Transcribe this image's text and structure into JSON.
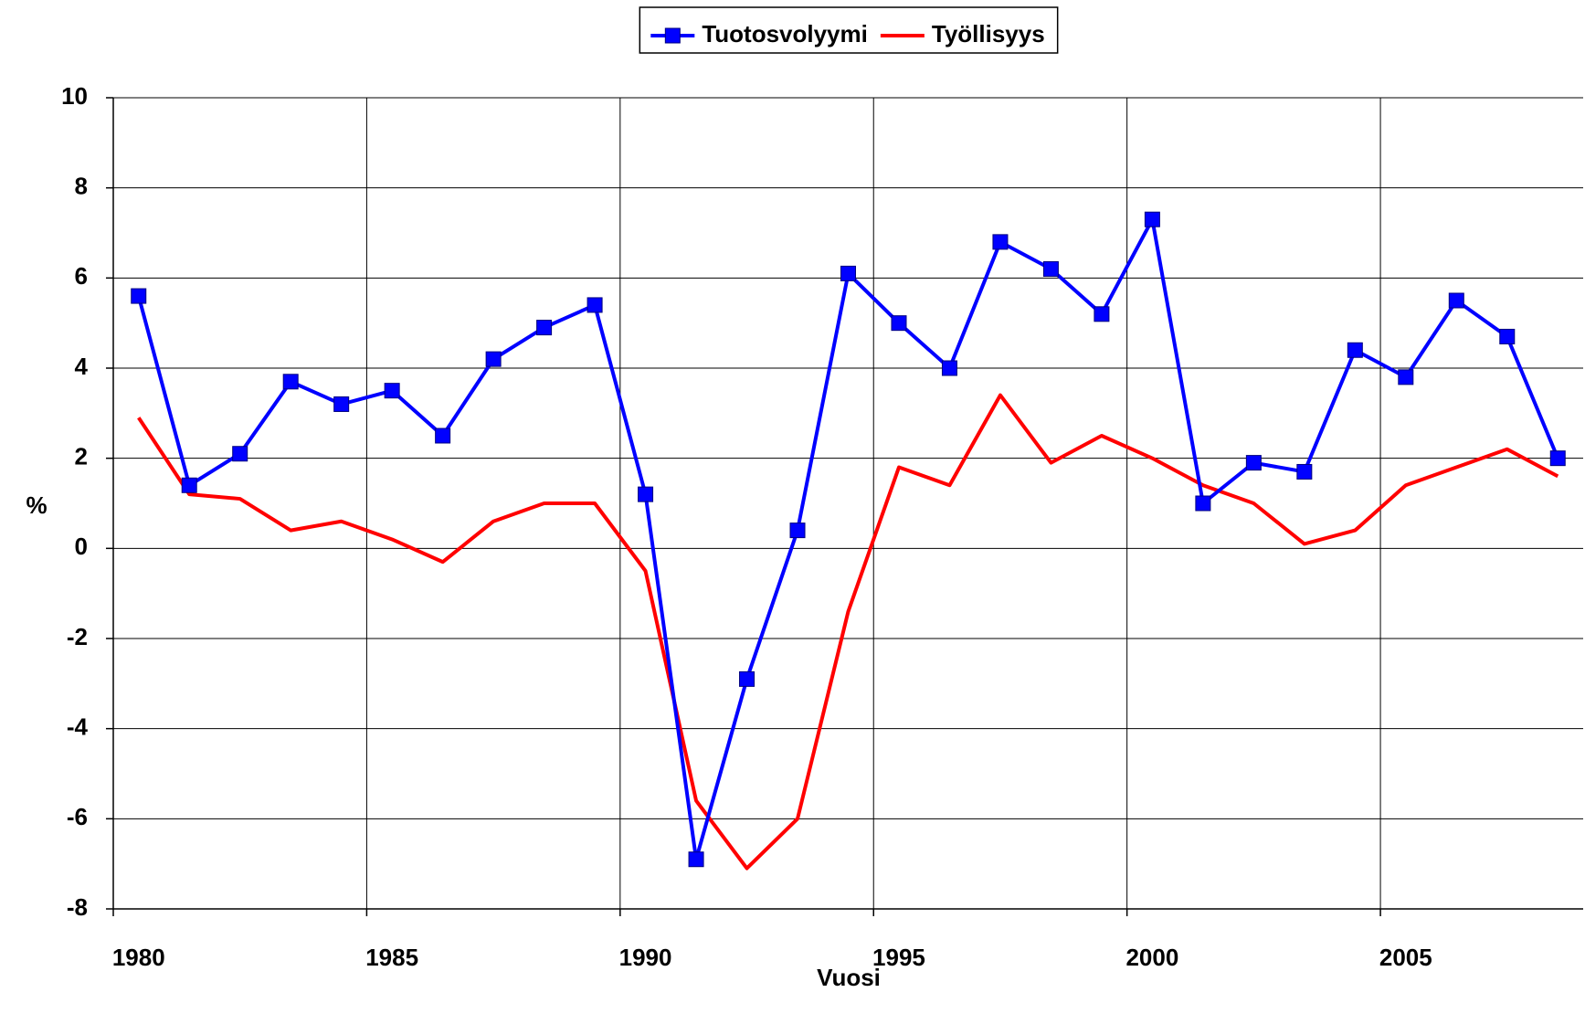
{
  "chart_data": {
    "type": "line",
    "x_label": "Vuosi",
    "y_label": "%",
    "categories": [
      "1980",
      null,
      null,
      null,
      null,
      "1985",
      null,
      null,
      null,
      null,
      "1990",
      null,
      null,
      null,
      null,
      "1995",
      null,
      null,
      null,
      null,
      "2000",
      null,
      null,
      null,
      null,
      "2005",
      null,
      null,
      null
    ],
    "series": [
      {
        "name": "Tuotosvolyymi",
        "color": "#0000ff",
        "marker": "square",
        "values": [
          5.6,
          1.4,
          2.1,
          3.7,
          3.2,
          3.5,
          2.5,
          4.2,
          4.9,
          5.4,
          1.2,
          -6.9,
          -2.9,
          0.4,
          6.1,
          5.0,
          4.0,
          6.8,
          6.2,
          5.2,
          7.3,
          1.0,
          1.9,
          1.7,
          4.4,
          3.8,
          5.5,
          4.7,
          2.0
        ]
      },
      {
        "name": "Työllisyys",
        "color": "#ff0000",
        "values": [
          2.9,
          1.2,
          1.1,
          0.4,
          0.6,
          0.2,
          -0.3,
          0.6,
          1.0,
          1.0,
          -0.5,
          -5.6,
          -7.1,
          -6.0,
          -1.4,
          1.8,
          1.4,
          3.4,
          1.9,
          2.5,
          2.0,
          1.4,
          1.0,
          0.1,
          0.4,
          1.4,
          1.8,
          2.2,
          1.6
        ]
      }
    ],
    "ylim": [
      -8,
      10
    ],
    "yticks": [
      -8,
      -6,
      -4,
      -2,
      0,
      2,
      4,
      6,
      8,
      10
    ],
    "grid": true,
    "legend": "top"
  }
}
